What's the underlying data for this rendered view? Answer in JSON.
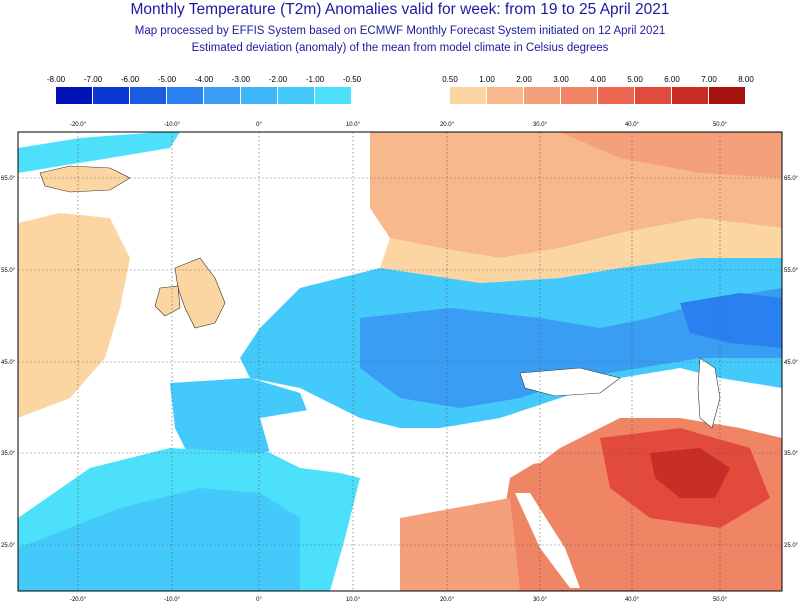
{
  "title": "Monthly Temperature (T2m) Anomalies valid for week: from 19 to 25 April 2021",
  "subtitle_1": "Map processed by EFFIS System based on ECMWF Monthly Forecast System initiated on 12 April 2021",
  "subtitle_2": "Estimated deviation (anomaly) of the mean from model climate in Celsius degrees",
  "legend_cold": {
    "labels": [
      "-8.00",
      "-7.00",
      "-6.00",
      "-5.00",
      "-4.00",
      "-3.00",
      "-2.00",
      "-1.00",
      "-0.50"
    ],
    "colors": [
      "#0012b8",
      "#0a37d0",
      "#1a5ce0",
      "#2a80ee",
      "#3a9df4",
      "#3fb6f8",
      "#43cafa",
      "#4de0fb"
    ]
  },
  "legend_warm": {
    "labels": [
      "0.50",
      "1.00",
      "2.00",
      "3.00",
      "4.00",
      "5.00",
      "6.00",
      "7.00",
      "8.00"
    ],
    "colors": [
      "#fbd6a2",
      "#f7b98b",
      "#f4a07a",
      "#f08565",
      "#ec6650",
      "#e24b3c",
      "#c82d26",
      "#a6130f"
    ]
  },
  "map": {
    "lon_ticks": [
      "-20.0°",
      "-10.0°",
      "0°",
      "10.0°",
      "20.0°",
      "30.0°",
      "40.0°",
      "50.0°"
    ],
    "lat_ticks": [
      "65.0°",
      "55.0°",
      "45.0°",
      "35.0°",
      "25.0°"
    ],
    "colors": {
      "water": "#ffffff",
      "grid": "#555555",
      "border": "#333333"
    }
  }
}
